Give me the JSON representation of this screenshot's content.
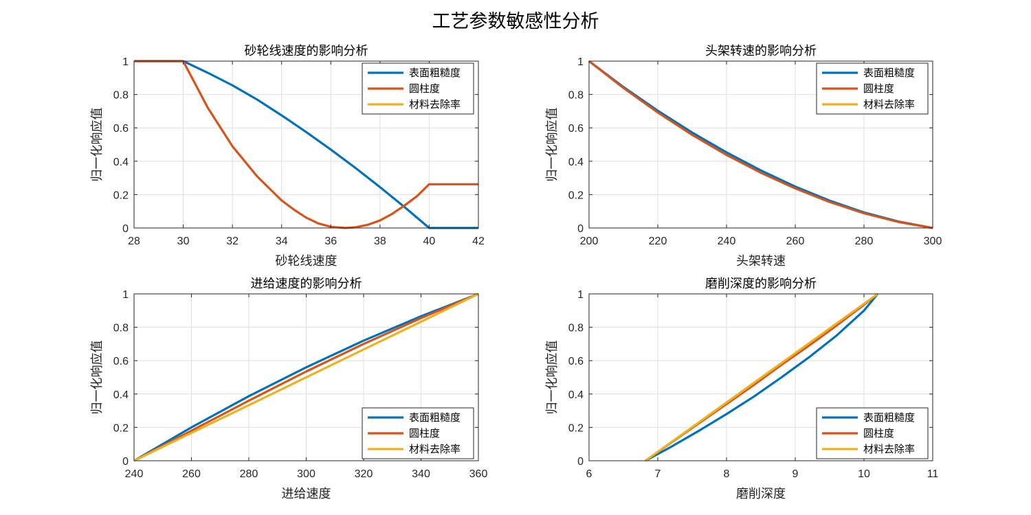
{
  "figure_title": "工艺参数敏感性分析",
  "colors": {
    "surface_roughness": "#0072BD",
    "cylindricity": "#D95319",
    "material_removal_rate": "#EDB120"
  },
  "chart_data": [
    {
      "type": "line",
      "title": "砂轮线速度的影响分析",
      "xlabel": "砂轮线速度",
      "ylabel": "归一化响应值",
      "xlim": [
        28,
        42
      ],
      "ylim": [
        0,
        1
      ],
      "xticks": [
        "28",
        "30",
        "32",
        "34",
        "36",
        "38",
        "40",
        "42"
      ],
      "yticks": [
        "0",
        "0.2",
        "0.4",
        "0.6",
        "0.8",
        "1"
      ],
      "grid": true,
      "legend_position": "top-right",
      "series": [
        {
          "name": "表面粗糙度",
          "color_key": "surface_roughness",
          "x": [
            28,
            29,
            30,
            31,
            32,
            33,
            34,
            35,
            36,
            37,
            38,
            39,
            40,
            41,
            42
          ],
          "y": [
            1,
            1,
            1,
            0.93,
            0.855,
            0.77,
            0.675,
            0.575,
            0.47,
            0.36,
            0.245,
            0.125,
            0,
            0,
            0
          ]
        },
        {
          "name": "圆柱度",
          "color_key": "cylindricity",
          "x": [
            28,
            29,
            30,
            31,
            32,
            33,
            34,
            34.5,
            35,
            35.5,
            36,
            36.6,
            37,
            37.5,
            38,
            38.5,
            39,
            39.5,
            40,
            41,
            42
          ],
          "y": [
            1,
            1,
            1,
            0.72,
            0.49,
            0.31,
            0.165,
            0.11,
            0.062,
            0.027,
            0.007,
            0,
            0.004,
            0.019,
            0.045,
            0.085,
            0.135,
            0.19,
            0.262,
            0.262,
            0.262
          ]
        },
        {
          "name": "材料去除率",
          "color_key": "material_removal_rate",
          "x": [],
          "y": []
        }
      ]
    },
    {
      "type": "line",
      "title": "头架转速的影响分析",
      "xlabel": "头架转速",
      "ylabel": "归一化响应值",
      "xlim": [
        200,
        300
      ],
      "ylim": [
        0,
        1
      ],
      "xticks": [
        "200",
        "220",
        "240",
        "260",
        "280",
        "300"
      ],
      "yticks": [
        "0",
        "0.2",
        "0.4",
        "0.6",
        "0.8",
        "1"
      ],
      "grid": true,
      "legend_position": "top-right",
      "series": [
        {
          "name": "表面粗糙度",
          "color_key": "surface_roughness",
          "x": [
            200,
            210,
            220,
            230,
            240,
            250,
            260,
            270,
            280,
            290,
            300
          ],
          "y": [
            1,
            0.845,
            0.703,
            0.572,
            0.453,
            0.345,
            0.248,
            0.164,
            0.093,
            0.039,
            0
          ]
        },
        {
          "name": "圆柱度",
          "color_key": "cylindricity",
          "x": [
            200,
            210,
            220,
            230,
            240,
            250,
            260,
            270,
            280,
            290,
            300
          ],
          "y": [
            1,
            0.839,
            0.692,
            0.558,
            0.438,
            0.331,
            0.237,
            0.156,
            0.088,
            0.036,
            0
          ]
        },
        {
          "name": "材料去除率",
          "color_key": "material_removal_rate",
          "x": [],
          "y": []
        }
      ]
    },
    {
      "type": "line",
      "title": "进给速度的影响分析",
      "xlabel": "进给速度",
      "ylabel": "归一化响应值",
      "xlim": [
        240,
        360
      ],
      "ylim": [
        0,
        1
      ],
      "xticks": [
        "240",
        "260",
        "280",
        "300",
        "320",
        "340",
        "360"
      ],
      "yticks": [
        "0",
        "0.2",
        "0.4",
        "0.6",
        "0.8",
        "1"
      ],
      "grid": true,
      "legend_position": "bottom-right",
      "series": [
        {
          "name": "表面粗糙度",
          "color_key": "surface_roughness",
          "x": [
            240,
            260,
            280,
            300,
            320,
            340,
            360
          ],
          "y": [
            0,
            0.2,
            0.387,
            0.56,
            0.72,
            0.866,
            1
          ]
        },
        {
          "name": "圆柱度",
          "color_key": "cylindricity",
          "x": [
            240,
            260,
            280,
            300,
            320,
            340,
            360
          ],
          "y": [
            0,
            0.18,
            0.36,
            0.535,
            0.7,
            0.855,
            1
          ]
        },
        {
          "name": "材料去除率",
          "color_key": "material_removal_rate",
          "x": [
            240,
            260,
            280,
            300,
            320,
            340,
            360
          ],
          "y": [
            0,
            0.167,
            0.333,
            0.5,
            0.667,
            0.833,
            1
          ]
        }
      ]
    },
    {
      "type": "line",
      "title": "磨削深度的影响分析",
      "xlabel": "磨削深度",
      "ylabel": "归一化响应值",
      "xlim": [
        6,
        11
      ],
      "ylim": [
        0,
        1
      ],
      "xticks": [
        "6",
        "7",
        "8",
        "9",
        "10",
        "11"
      ],
      "yticks": [
        "0",
        "0.2",
        "0.4",
        "0.6",
        "0.8",
        "1"
      ],
      "grid": true,
      "legend_position": "bottom-right",
      "series": [
        {
          "name": "表面粗糙度",
          "color_key": "surface_roughness",
          "x": [
            6.82,
            7.2,
            7.6,
            8.0,
            8.4,
            8.8,
            9.2,
            9.6,
            10.0,
            10.2
          ],
          "y": [
            0,
            0.085,
            0.18,
            0.28,
            0.385,
            0.5,
            0.62,
            0.75,
            0.9,
            1
          ]
        },
        {
          "name": "圆柱度",
          "color_key": "cylindricity",
          "x": [
            6.82,
            7.2,
            7.6,
            8.0,
            8.4,
            8.8,
            9.2,
            9.6,
            10.0,
            10.2
          ],
          "y": [
            0,
            0.11,
            0.225,
            0.34,
            0.455,
            0.575,
            0.69,
            0.81,
            0.935,
            1
          ]
        },
        {
          "name": "材料去除率",
          "color_key": "material_removal_rate",
          "x": [
            6.82,
            10.2
          ],
          "y": [
            0,
            1
          ]
        }
      ]
    }
  ]
}
